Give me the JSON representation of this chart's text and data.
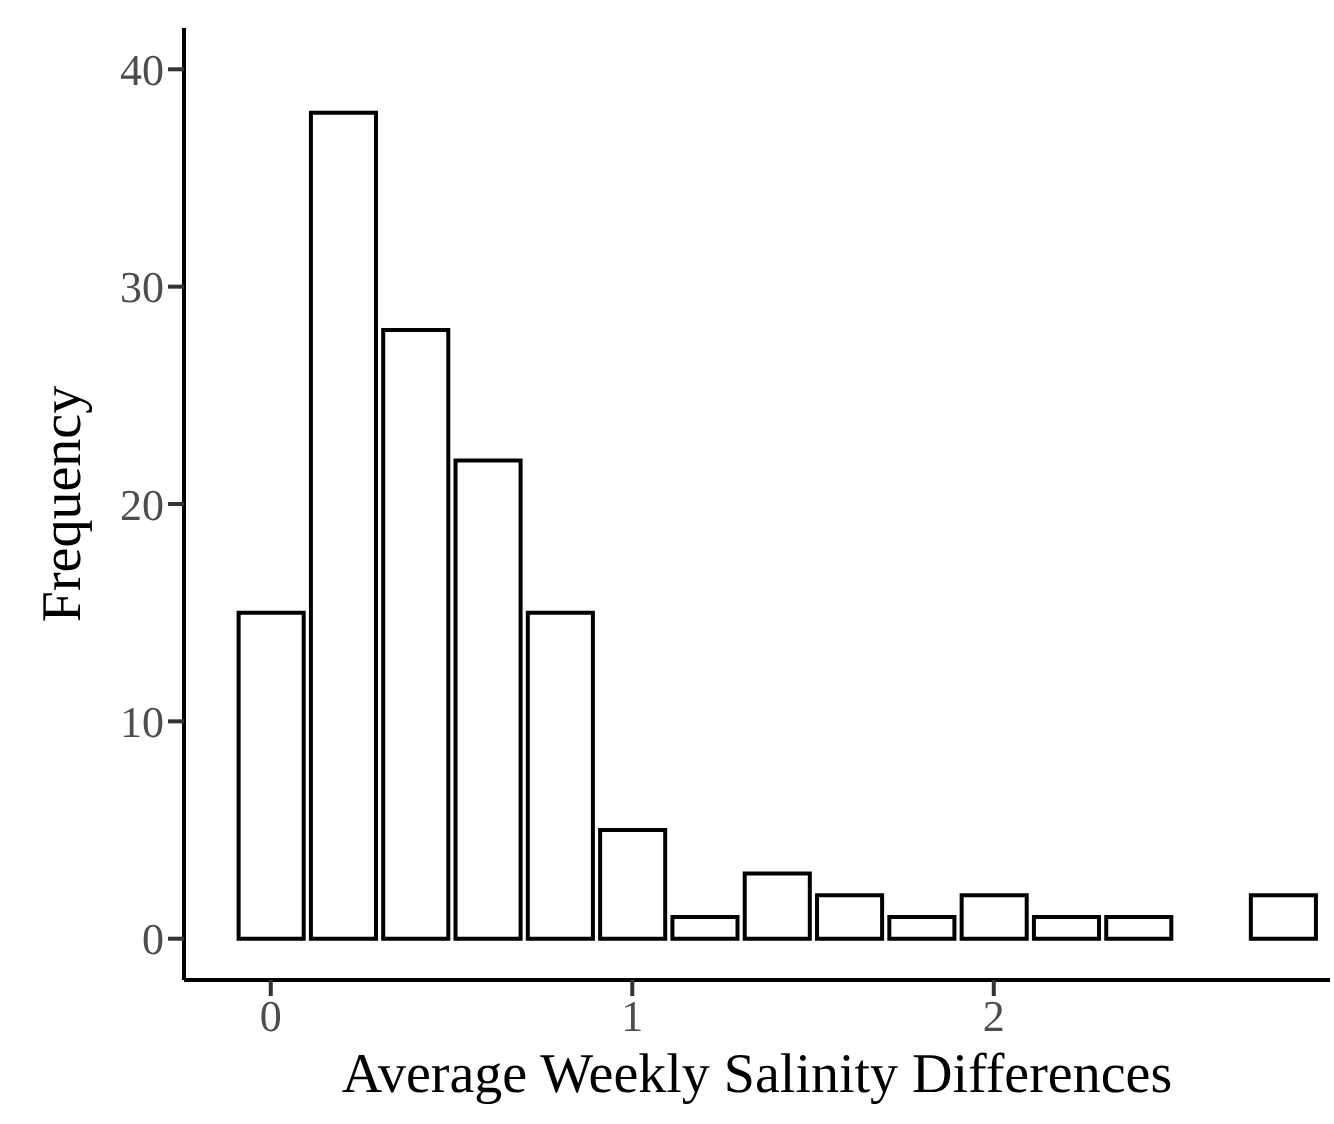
{
  "chart_data": {
    "type": "histogram",
    "xlabel": "Average Weekly Salinity Differences",
    "ylabel": "Frequency",
    "bins": [
      -0.1,
      0.1,
      0.3,
      0.5,
      0.7,
      0.9,
      1.1,
      1.3,
      1.5,
      1.7,
      1.9,
      2.1,
      2.3,
      2.5,
      2.7,
      2.9
    ],
    "values": [
      15,
      38,
      28,
      22,
      15,
      5,
      1,
      3,
      2,
      1,
      2,
      1,
      1,
      0,
      2
    ],
    "color": "#ffffff",
    "xlim": [
      -0.24,
      2.93
    ],
    "xticks": [
      0,
      1,
      2
    ],
    "ylim": [
      -1.9,
      41.9
    ],
    "yticks": [
      0,
      10,
      20,
      30,
      40
    ],
    "grid": false
  }
}
